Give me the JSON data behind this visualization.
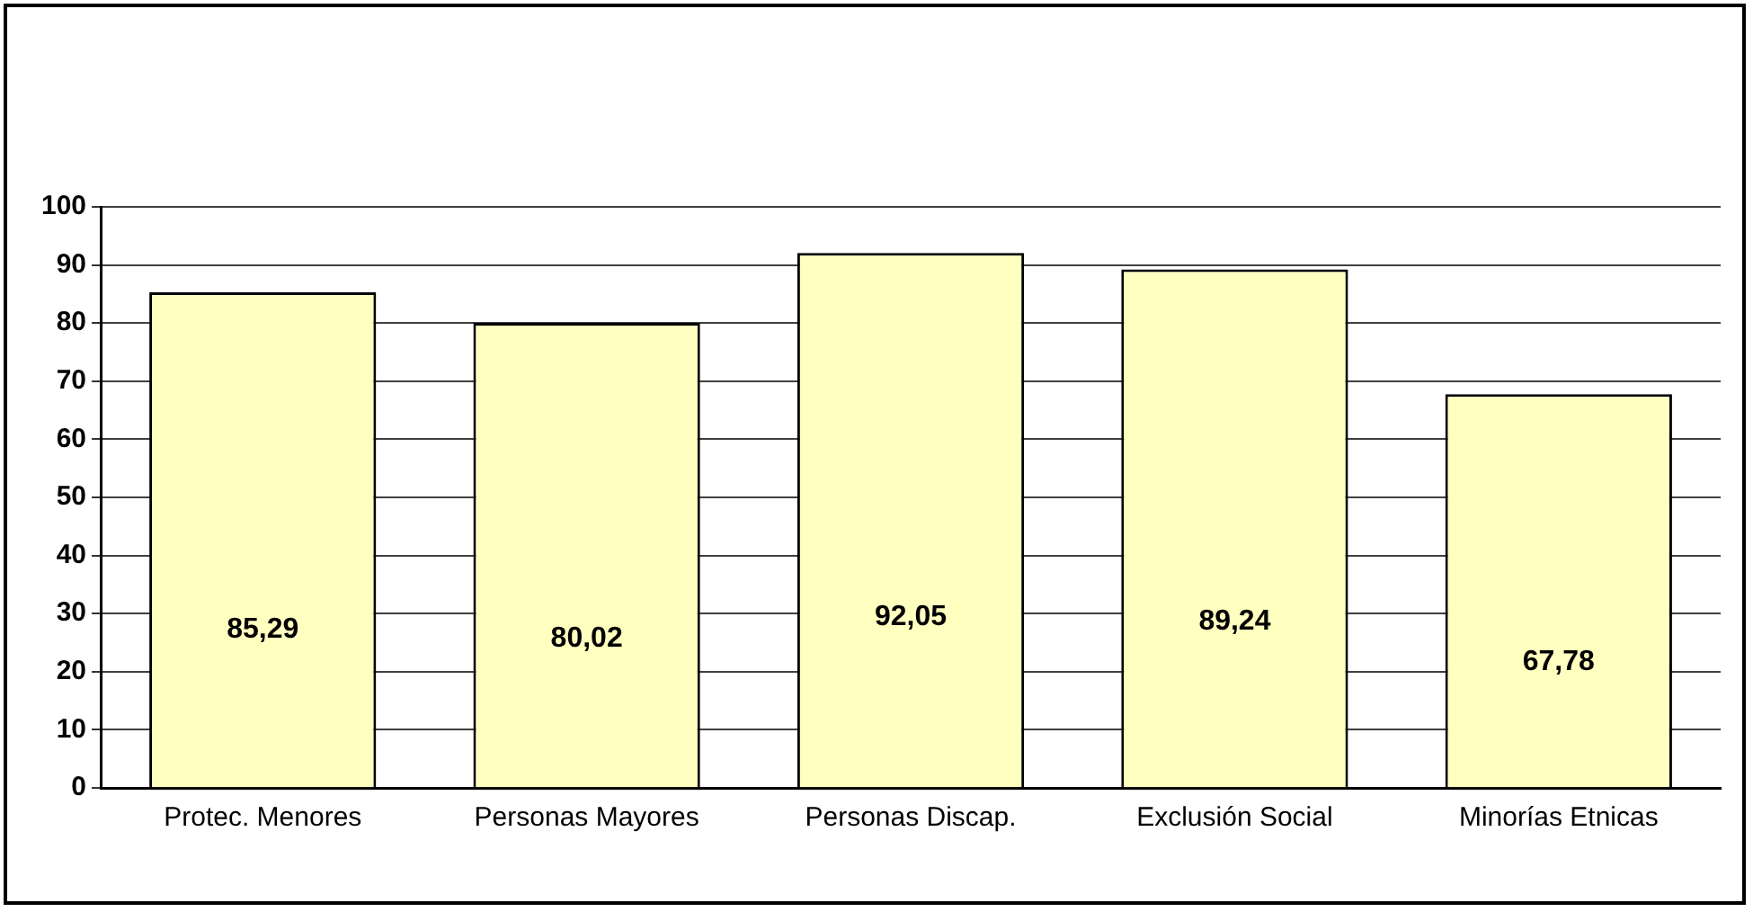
{
  "chart_data": {
    "type": "bar",
    "categories": [
      "Protec. Menores",
      "Personas Mayores",
      "Personas Discap.",
      "Exclusión Social",
      "Minorías Etnicas"
    ],
    "values": [
      85.29,
      80.02,
      92.05,
      89.24,
      67.78
    ],
    "value_labels": [
      "85,29",
      "80,02",
      "92,05",
      "89,24",
      "67,78"
    ],
    "color": "#ffffc0",
    "ylim": [
      0,
      100
    ],
    "yticks": [
      0,
      10,
      20,
      30,
      40,
      50,
      60,
      70,
      80,
      90,
      100
    ],
    "grid": "y",
    "legend": false
  }
}
